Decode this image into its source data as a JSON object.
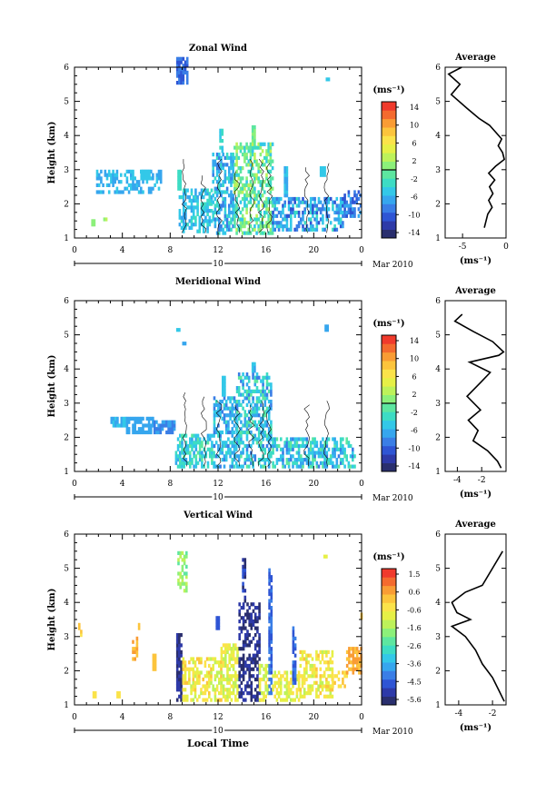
{
  "xlabel_bottom": "Local Time",
  "date_label": "10",
  "date_month": "Mar 2010",
  "unit_label": "(ms⁻¹)",
  "avg_xlabel": "(ms⁻¹)",
  "chart_data": [
    {
      "type": "heatmap",
      "title": "Zonal Wind",
      "ylabel": "Height (km)",
      "xlim": [
        0,
        24
      ],
      "ylim": [
        1,
        6
      ],
      "xticks": [
        "0",
        "4",
        "8",
        "12",
        "16",
        "20",
        "0"
      ],
      "yticks": [
        "1",
        "2",
        "3",
        "4",
        "5",
        "6"
      ],
      "colorbar": {
        "ticks": [
          "14",
          "10",
          "6",
          "2",
          "-2",
          "-6",
          "-10",
          "-14"
        ],
        "min": -15,
        "max": 15
      },
      "average": {
        "title": "Average",
        "xticks": [
          "-5",
          "0"
        ],
        "xlim": [
          -7,
          0
        ],
        "profile": [
          [
            -2.5,
            1.3
          ],
          [
            -2.3,
            1.5
          ],
          [
            -2.1,
            1.7
          ],
          [
            -1.6,
            1.9
          ],
          [
            -2.0,
            2.1
          ],
          [
            -1.5,
            2.3
          ],
          [
            -1.9,
            2.5
          ],
          [
            -1.3,
            2.7
          ],
          [
            -2.0,
            2.9
          ],
          [
            -1.2,
            3.1
          ],
          [
            -0.2,
            3.3
          ],
          [
            -0.4,
            3.5
          ],
          [
            -0.9,
            3.7
          ],
          [
            -0.5,
            3.9
          ],
          [
            -1.2,
            4.1
          ],
          [
            -1.9,
            4.3
          ],
          [
            -3.1,
            4.5
          ],
          [
            -4.5,
            4.8
          ],
          [
            -6.3,
            5.2
          ],
          [
            -5.3,
            5.5
          ],
          [
            -6.6,
            5.8
          ],
          [
            -5.1,
            6.0
          ]
        ]
      }
    },
    {
      "type": "heatmap",
      "title": "Meridional Wind",
      "ylabel": "Height (km)",
      "xlim": [
        0,
        24
      ],
      "ylim": [
        1,
        6
      ],
      "xticks": [
        "0",
        "4",
        "8",
        "12",
        "16",
        "20",
        "0"
      ],
      "yticks": [
        "1",
        "2",
        "3",
        "4",
        "5",
        "6"
      ],
      "colorbar": {
        "ticks": [
          "14",
          "10",
          "6",
          "2",
          "-2",
          "-6",
          "-10",
          "-14"
        ],
        "min": -15,
        "max": 15
      },
      "average": {
        "title": "Average",
        "xticks": [
          "-4",
          "-2"
        ],
        "xlim": [
          -5,
          0
        ],
        "profile": [
          [
            -0.4,
            1.1
          ],
          [
            -0.7,
            1.3
          ],
          [
            -1.5,
            1.6
          ],
          [
            -2.7,
            1.9
          ],
          [
            -2.3,
            2.2
          ],
          [
            -3.1,
            2.5
          ],
          [
            -2.1,
            2.8
          ],
          [
            -3.2,
            3.2
          ],
          [
            -2.1,
            3.6
          ],
          [
            -1.3,
            3.9
          ],
          [
            -3.0,
            4.2
          ],
          [
            -0.6,
            4.4
          ],
          [
            -0.2,
            4.5
          ],
          [
            -1.1,
            4.8
          ],
          [
            -2.7,
            5.1
          ],
          [
            -4.2,
            5.4
          ],
          [
            -3.6,
            5.6
          ]
        ]
      }
    },
    {
      "type": "heatmap",
      "title": "Vertical Wind",
      "ylabel": "Height (km)",
      "xlabel": "Local Time",
      "xlim": [
        0,
        24
      ],
      "ylim": [
        1,
        6
      ],
      "xticks": [
        "0",
        "4",
        "8",
        "12",
        "16",
        "20",
        "0"
      ],
      "yticks": [
        "1",
        "2",
        "3",
        "4",
        "5",
        "6"
      ],
      "colorbar": {
        "ticks": [
          "1.5",
          "0.6",
          "-0.6",
          "-1.6",
          "-2.6",
          "-3.6",
          "-4.5",
          "-5.6"
        ],
        "min": -6,
        "max": 2
      },
      "average": {
        "title": "Average",
        "xticks": [
          "-4",
          "-2"
        ],
        "xlim": [
          -4.8,
          -1.2
        ],
        "profile": [
          [
            -1.3,
            1.1
          ],
          [
            -1.6,
            1.4
          ],
          [
            -2.0,
            1.8
          ],
          [
            -2.6,
            2.2
          ],
          [
            -3.0,
            2.6
          ],
          [
            -3.6,
            3.0
          ],
          [
            -4.4,
            3.3
          ],
          [
            -3.3,
            3.5
          ],
          [
            -4.1,
            3.7
          ],
          [
            -4.4,
            4.0
          ],
          [
            -3.6,
            4.3
          ],
          [
            -2.6,
            4.5
          ],
          [
            -2.0,
            5.0
          ],
          [
            -1.4,
            5.5
          ]
        ]
      }
    }
  ]
}
